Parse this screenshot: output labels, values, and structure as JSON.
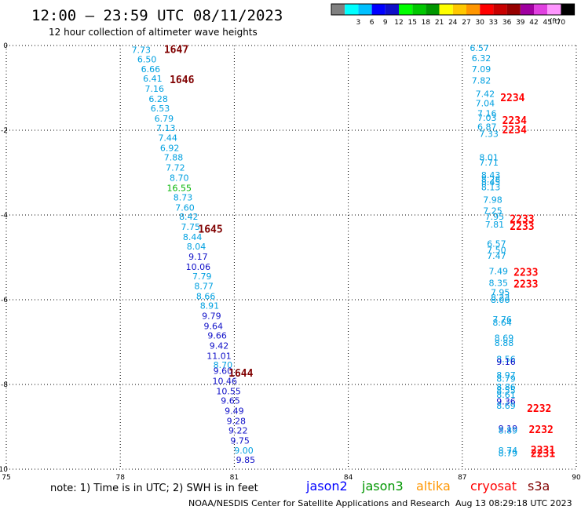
{
  "title": "12:00 – 23:59 UTC 08/11/2023",
  "subtitle": "12 hour collection of altimeter wave heights",
  "color_scale": {
    "unit": "(ft)",
    "bins": [
      {
        "label": "",
        "color": "#808080"
      },
      {
        "label": "3",
        "color": "#00ffff"
      },
      {
        "label": "6",
        "color": "#00c0ff"
      },
      {
        "label": "9",
        "color": "#0000ff"
      },
      {
        "label": "12",
        "color": "#1010c8"
      },
      {
        "label": "15",
        "color": "#00ff00"
      },
      {
        "label": "18",
        "color": "#00c800"
      },
      {
        "label": "21",
        "color": "#009600"
      },
      {
        "label": "24",
        "color": "#ffff00"
      },
      {
        "label": "27",
        "color": "#ffc800"
      },
      {
        "label": "30",
        "color": "#ff9600"
      },
      {
        "label": "33",
        "color": "#ff0000"
      },
      {
        "label": "36",
        "color": "#c80000"
      },
      {
        "label": "39",
        "color": "#960000"
      },
      {
        "label": "42",
        "color": "#a000a0"
      },
      {
        "label": "45",
        "color": "#e040e0"
      },
      {
        "label": "70",
        "color": "#ff96ff"
      },
      {
        "label": "",
        "color": "#000000"
      }
    ]
  },
  "note": "note: 1) Time is in UTC; 2) SWH is in feet",
  "satellites": [
    {
      "name": "jason2",
      "color": "#0000ff"
    },
    {
      "name": "jason3",
      "color": "#009600"
    },
    {
      "name": "altika",
      "color": "#ff9600"
    },
    {
      "name": "cryosat",
      "color": "#ff0000"
    },
    {
      "name": "s3a",
      "color": "#800000"
    }
  ],
  "footer_left": "NOAA/NESDIS Center for Satellite Applications and Research",
  "footer_right": "Aug 13 08:29:18 UTC 2023",
  "chart_data": {
    "type": "scatter",
    "x_ticks": [
      75,
      78,
      81,
      84,
      87,
      90
    ],
    "y_ticks": [
      0,
      -2,
      -4,
      -6,
      -8,
      -10
    ],
    "xlim": [
      75,
      90
    ],
    "ylim": [
      -10,
      0
    ],
    "grid": true,
    "points": [
      {
        "x": 78.55,
        "y": -0.1,
        "label": "7.73",
        "color": "#00a0e0"
      },
      {
        "x": 78.7,
        "y": -0.32,
        "label": "6.50",
        "color": "#00a0e0"
      },
      {
        "x": 78.8,
        "y": -0.56,
        "label": "6.66",
        "color": "#00a0e0"
      },
      {
        "x": 78.85,
        "y": -0.78,
        "label": "6.41",
        "color": "#00a0e0"
      },
      {
        "x": 78.9,
        "y": -1.02,
        "label": "7.16",
        "color": "#00a0e0"
      },
      {
        "x": 79.0,
        "y": -1.26,
        "label": "6.28",
        "color": "#00a0e0"
      },
      {
        "x": 79.05,
        "y": -1.48,
        "label": "6.53",
        "color": "#00a0e0"
      },
      {
        "x": 79.15,
        "y": -1.72,
        "label": "6.79",
        "color": "#00a0e0"
      },
      {
        "x": 79.2,
        "y": -1.94,
        "label": "7.13",
        "color": "#00a0e0"
      },
      {
        "x": 79.25,
        "y": -2.18,
        "label": "7.44",
        "color": "#00a0e0"
      },
      {
        "x": 79.3,
        "y": -2.42,
        "label": "6.92",
        "color": "#00a0e0"
      },
      {
        "x": 79.4,
        "y": -2.64,
        "label": "7.88",
        "color": "#00a0e0"
      },
      {
        "x": 79.45,
        "y": -2.88,
        "label": "7.72",
        "color": "#00a0e0"
      },
      {
        "x": 79.55,
        "y": -3.12,
        "label": "8.70",
        "color": "#00a0e0"
      },
      {
        "x": 79.55,
        "y": -3.36,
        "label": "16.55",
        "color": "#00b400"
      },
      {
        "x": 79.65,
        "y": -3.58,
        "label": "8.73",
        "color": "#00a0e0"
      },
      {
        "x": 79.7,
        "y": -3.82,
        "label": "7.60",
        "color": "#00a0e0"
      },
      {
        "x": 79.8,
        "y": -4.04,
        "label": "8.42",
        "color": "#00a0e0"
      },
      {
        "x": 79.85,
        "y": -4.28,
        "label": "7.75",
        "color": "#00a0e0"
      },
      {
        "x": 79.9,
        "y": -4.52,
        "label": "8.44",
        "color": "#00a0e0"
      },
      {
        "x": 80.0,
        "y": -4.74,
        "label": "8.04",
        "color": "#00a0e0"
      },
      {
        "x": 80.05,
        "y": -4.98,
        "label": "9.17",
        "color": "#1010c8"
      },
      {
        "x": 80.05,
        "y": -5.22,
        "label": "10.06",
        "color": "#1010c8"
      },
      {
        "x": 80.15,
        "y": -5.44,
        "label": "7.79",
        "color": "#00a0e0"
      },
      {
        "x": 80.2,
        "y": -5.68,
        "label": "8.77",
        "color": "#00a0e0"
      },
      {
        "x": 80.25,
        "y": -5.92,
        "label": "8.66",
        "color": "#00a0e0"
      },
      {
        "x": 80.35,
        "y": -6.14,
        "label": "8.91",
        "color": "#00a0e0"
      },
      {
        "x": 80.4,
        "y": -6.38,
        "label": "9.79",
        "color": "#1010c8"
      },
      {
        "x": 80.45,
        "y": -6.62,
        "label": "9.64",
        "color": "#1010c8"
      },
      {
        "x": 80.55,
        "y": -6.84,
        "label": "9.66",
        "color": "#1010c8"
      },
      {
        "x": 80.6,
        "y": -7.08,
        "label": "9.42",
        "color": "#1010c8"
      },
      {
        "x": 80.6,
        "y": -7.32,
        "label": "11.01",
        "color": "#1010c8"
      },
      {
        "x": 80.7,
        "y": -7.54,
        "label": "8.70",
        "color": "#00a0e0"
      },
      {
        "x": 80.7,
        "y": -7.68,
        "label": "9.60",
        "color": "#1010c8"
      },
      {
        "x": 80.75,
        "y": -7.92,
        "label": "10.46",
        "color": "#1010c8"
      },
      {
        "x": 80.85,
        "y": -8.16,
        "label": "10.55",
        "color": "#1010c8"
      },
      {
        "x": 80.9,
        "y": -8.38,
        "label": "9.65",
        "color": "#1010c8"
      },
      {
        "x": 81.0,
        "y": -8.62,
        "label": "9.49",
        "color": "#1010c8"
      },
      {
        "x": 81.05,
        "y": -8.86,
        "label": "9.28",
        "color": "#1010c8"
      },
      {
        "x": 81.1,
        "y": -9.08,
        "label": "9.22",
        "color": "#1010c8"
      },
      {
        "x": 81.15,
        "y": -9.32,
        "label": "9.75",
        "color": "#1010c8"
      },
      {
        "x": 81.25,
        "y": -9.56,
        "label": "9.00",
        "color": "#00a0e0"
      },
      {
        "x": 81.3,
        "y": -9.78,
        "label": "9.85",
        "color": "#1010c8"
      },
      {
        "x": 87.45,
        "y": -0.06,
        "label": "6.57",
        "color": "#00a0e0"
      },
      {
        "x": 87.5,
        "y": -0.3,
        "label": "6.32",
        "color": "#00a0e0"
      },
      {
        "x": 87.5,
        "y": -0.56,
        "label": "7.09",
        "color": "#00a0e0"
      },
      {
        "x": 87.5,
        "y": -0.82,
        "label": "7.82",
        "color": "#00a0e0"
      },
      {
        "x": 87.6,
        "y": -1.14,
        "label": "7.42",
        "color": "#00a0e0"
      },
      {
        "x": 87.6,
        "y": -1.36,
        "label": "7.04",
        "color": "#00a0e0"
      },
      {
        "x": 87.65,
        "y": -1.6,
        "label": "7.16",
        "color": "#00a0e0"
      },
      {
        "x": 87.65,
        "y": -1.7,
        "label": "7.03",
        "color": "#00a0e0"
      },
      {
        "x": 87.65,
        "y": -1.92,
        "label": "6.87",
        "color": "#00a0e0"
      },
      {
        "x": 87.7,
        "y": -2.08,
        "label": "7.33",
        "color": "#00a0e0"
      },
      {
        "x": 87.7,
        "y": -2.64,
        "label": "8.01",
        "color": "#00a0e0"
      },
      {
        "x": 87.7,
        "y": -2.76,
        "label": "7.71",
        "color": "#00a0e0"
      },
      {
        "x": 87.75,
        "y": -3.06,
        "label": "8.43",
        "color": "#00a0e0"
      },
      {
        "x": 87.75,
        "y": -3.16,
        "label": "8.28",
        "color": "#00a0e0"
      },
      {
        "x": 87.75,
        "y": -3.22,
        "label": "8.45",
        "color": "#00a0e0"
      },
      {
        "x": 87.75,
        "y": -3.34,
        "label": "8.13",
        "color": "#00a0e0"
      },
      {
        "x": 87.8,
        "y": -3.64,
        "label": "7.98",
        "color": "#00a0e0"
      },
      {
        "x": 87.8,
        "y": -3.9,
        "label": "7.25",
        "color": "#00a0e0"
      },
      {
        "x": 87.85,
        "y": -4.04,
        "label": "7.95",
        "color": "#00a0e0"
      },
      {
        "x": 87.85,
        "y": -4.22,
        "label": "7.81",
        "color": "#00a0e0"
      },
      {
        "x": 87.9,
        "y": -4.68,
        "label": "6.57",
        "color": "#00a0e0"
      },
      {
        "x": 87.9,
        "y": -4.82,
        "label": "7.50",
        "color": "#00a0e0"
      },
      {
        "x": 87.9,
        "y": -4.96,
        "label": "7.47",
        "color": "#00a0e0"
      },
      {
        "x": 87.95,
        "y": -5.32,
        "label": "7.49",
        "color": "#00a0e0"
      },
      {
        "x": 87.95,
        "y": -5.6,
        "label": "8.35",
        "color": "#00a0e0"
      },
      {
        "x": 88.0,
        "y": -5.82,
        "label": "7.95",
        "color": "#00a0e0"
      },
      {
        "x": 88.0,
        "y": -5.94,
        "label": "8.23",
        "color": "#00a0e0"
      },
      {
        "x": 88.0,
        "y": -6.0,
        "label": "8.06",
        "color": "#00a0e0"
      },
      {
        "x": 88.05,
        "y": -6.46,
        "label": "7.76",
        "color": "#00a0e0"
      },
      {
        "x": 88.05,
        "y": -6.54,
        "label": "8.64",
        "color": "#00a0e0"
      },
      {
        "x": 88.1,
        "y": -6.9,
        "label": "8.69",
        "color": "#00a0e0"
      },
      {
        "x": 88.1,
        "y": -7.02,
        "label": "8.88",
        "color": "#00a0e0"
      },
      {
        "x": 88.15,
        "y": -7.4,
        "label": "8.56",
        "color": "#00a0e0"
      },
      {
        "x": 88.15,
        "y": -7.46,
        "label": "9.16",
        "color": "#1010c8"
      },
      {
        "x": 88.15,
        "y": -7.78,
        "label": "8.97",
        "color": "#00a0e0"
      },
      {
        "x": 88.15,
        "y": -7.86,
        "label": "8.79",
        "color": "#00a0e0"
      },
      {
        "x": 88.15,
        "y": -8.06,
        "label": "8.86",
        "color": "#00a0e0"
      },
      {
        "x": 88.15,
        "y": -8.14,
        "label": "8.55",
        "color": "#00a0e0"
      },
      {
        "x": 88.15,
        "y": -8.24,
        "label": "8.61",
        "color": "#00a0e0"
      },
      {
        "x": 88.15,
        "y": -8.4,
        "label": "9.36",
        "color": "#1010c8"
      },
      {
        "x": 88.15,
        "y": -8.5,
        "label": "8.69",
        "color": "#00a0e0"
      },
      {
        "x": 88.2,
        "y": -9.04,
        "label": "9.19",
        "color": "#1010c8"
      },
      {
        "x": 88.2,
        "y": -9.08,
        "label": "8.89",
        "color": "#00a0e0"
      },
      {
        "x": 88.2,
        "y": -9.56,
        "label": "8.74",
        "color": "#00a0e0"
      },
      {
        "x": 88.2,
        "y": -9.62,
        "label": "8.79",
        "color": "#00a0e0"
      }
    ],
    "pass_labels": [
      {
        "x": 79.15,
        "y": -0.08,
        "label": "1647",
        "color": "#800000"
      },
      {
        "x": 79.3,
        "y": -0.8,
        "label": "1646",
        "color": "#800000"
      },
      {
        "x": 80.05,
        "y": -4.32,
        "label": "1645",
        "color": "#800000"
      },
      {
        "x": 80.85,
        "y": -7.72,
        "label": "1644",
        "color": "#800000"
      },
      {
        "x": 88.0,
        "y": -1.22,
        "label": "2234",
        "color": "#ff0000"
      },
      {
        "x": 88.05,
        "y": -1.76,
        "label": "2234",
        "color": "#ff0000"
      },
      {
        "x": 88.05,
        "y": -1.98,
        "label": "2234",
        "color": "#ff0000"
      },
      {
        "x": 88.25,
        "y": -4.08,
        "label": "2233",
        "color": "#ff0000"
      },
      {
        "x": 88.25,
        "y": -4.26,
        "label": "2233",
        "color": "#ff0000"
      },
      {
        "x": 88.35,
        "y": -5.34,
        "label": "2233",
        "color": "#ff0000"
      },
      {
        "x": 88.35,
        "y": -5.62,
        "label": "2233",
        "color": "#ff0000"
      },
      {
        "x": 88.7,
        "y": -8.56,
        "label": "2232",
        "color": "#ff0000"
      },
      {
        "x": 88.75,
        "y": -9.06,
        "label": "2232",
        "color": "#ff0000"
      },
      {
        "x": 88.8,
        "y": -9.54,
        "label": "2231",
        "color": "#ff0000"
      },
      {
        "x": 88.8,
        "y": -9.62,
        "label": "2231",
        "color": "#ff0000"
      }
    ]
  }
}
